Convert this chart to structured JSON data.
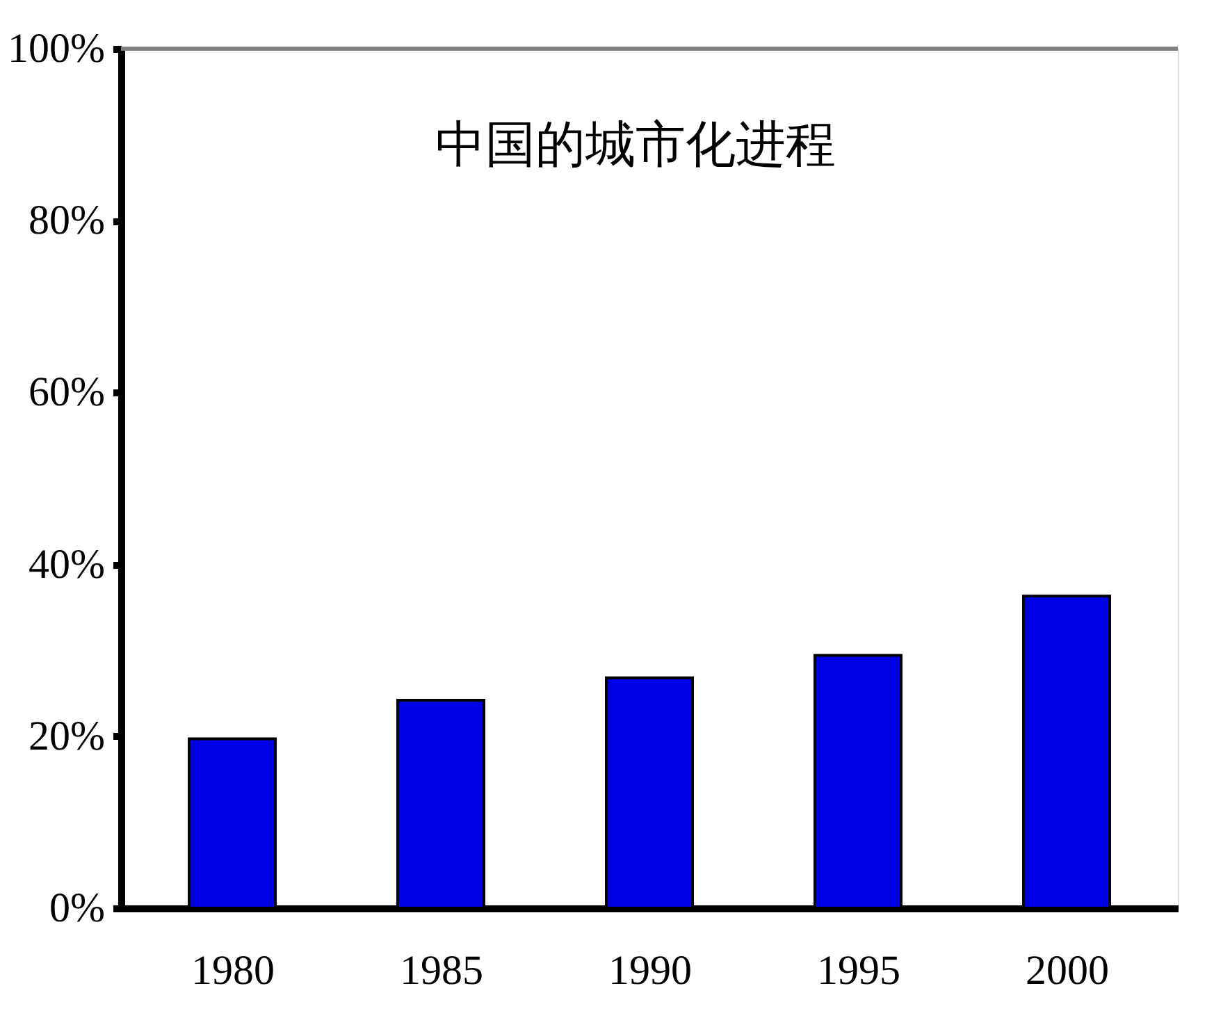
{
  "chart_data": {
    "type": "bar",
    "title": "中国的城市化进程",
    "categories": [
      "1980",
      "1985",
      "1990",
      "1995",
      "2000"
    ],
    "values": [
      19.7,
      24.2,
      26.8,
      29.4,
      36.3
    ],
    "color": "#0000e6",
    "ylim": [
      0,
      100
    ],
    "yticks": [
      {
        "value": 0,
        "label": "0%"
      },
      {
        "value": 20,
        "label": "20%"
      },
      {
        "value": 40,
        "label": "40%"
      },
      {
        "value": 60,
        "label": "60%"
      },
      {
        "value": 80,
        "label": "80%"
      },
      {
        "value": 100,
        "label": "100%"
      }
    ],
    "ref_lines": [
      {
        "axis": "y",
        "value": 100,
        "color": "#808080"
      }
    ],
    "grid": false
  }
}
